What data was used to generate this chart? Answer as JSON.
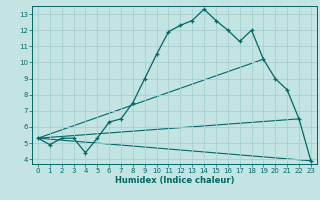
{
  "title": "",
  "xlabel": "Humidex (Indice chaleur)",
  "ylabel": "",
  "background_color": "#c4e4e4",
  "grid_color": "#a8d0d0",
  "line_color": "#006666",
  "xlim_min": -0.5,
  "xlim_max": 23.5,
  "ylim_min": 3.7,
  "ylim_max": 13.5,
  "xticks": [
    0,
    1,
    2,
    3,
    4,
    5,
    6,
    7,
    8,
    9,
    10,
    11,
    12,
    13,
    14,
    15,
    16,
    17,
    18,
    19,
    20,
    21,
    22,
    23
  ],
  "yticks": [
    4,
    5,
    6,
    7,
    8,
    9,
    10,
    11,
    12,
    13
  ],
  "curve1_x": [
    0,
    1,
    2,
    3,
    4,
    5,
    6,
    7,
    8,
    9,
    10,
    11,
    12,
    13,
    14,
    15,
    16,
    17,
    18,
    19,
    20,
    21,
    22,
    23
  ],
  "curve1_y": [
    5.3,
    4.9,
    5.3,
    5.3,
    4.4,
    5.3,
    6.3,
    6.5,
    7.5,
    9.0,
    10.5,
    11.9,
    12.3,
    12.6,
    13.3,
    12.6,
    12.0,
    11.3,
    12.0,
    10.2,
    9.0,
    8.3,
    6.5,
    3.9
  ],
  "line1_x": [
    0,
    23
  ],
  "line1_y": [
    5.3,
    3.9
  ],
  "line2_x": [
    0,
    19
  ],
  "line2_y": [
    5.3,
    10.2
  ],
  "line3_x": [
    0,
    22
  ],
  "line3_y": [
    5.3,
    6.5
  ],
  "figwidth": 3.2,
  "figheight": 2.0,
  "dpi": 100
}
